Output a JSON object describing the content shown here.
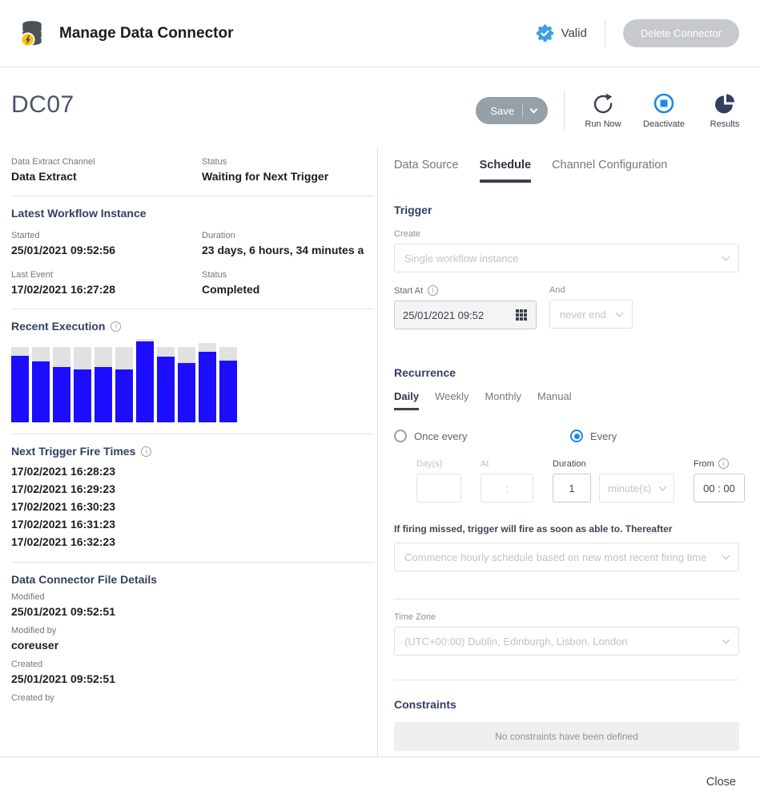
{
  "colors": {
    "accent_blue": "#1e88e5",
    "bar_blue": "#1c0dff",
    "track_gray": "#e1e1e1",
    "navy": "#333e63",
    "badge_blue": "#3d9fe0"
  },
  "icons": {
    "app_icon": "database-with-lightning-bolt",
    "valid_icon": "blue-seal-with-check",
    "run_now_icon": "circular-arrow",
    "deactivate_icon": "stop-square-in-circle",
    "results_icon": "pie-chart",
    "calendar_icon": "calendar-grid",
    "info_icon": "circle-i",
    "chevron_icon": "chevron-down"
  },
  "header": {
    "title": "Manage Data Connector",
    "status_badge": "Valid",
    "delete_button": "Delete Connector"
  },
  "title_row": {
    "name": "DC07",
    "save_button": "Save",
    "actions": [
      {
        "label": "Run Now"
      },
      {
        "label": "Deactivate"
      },
      {
        "label": "Results"
      }
    ]
  },
  "left_panel": {
    "fields_top": {
      "channel_label": "Data Extract Channel",
      "channel_value": "Data Extract",
      "status_label": "Status",
      "status_value": "Waiting for Next Trigger"
    },
    "workflow": {
      "heading": "Latest Workflow Instance",
      "started_label": "Started",
      "started_value": "25/01/2021 09:52:56",
      "duration_label": "Duration",
      "duration_value": "23 days, 6 hours, 34 minutes a",
      "last_event_label": "Last Event",
      "last_event_value": "17/02/2021 16:27:28",
      "status_label": "Status",
      "status_value": "Completed"
    },
    "recent_execution": {
      "heading": "Recent Execution"
    },
    "next_trigger": {
      "heading": "Next Trigger Fire Times",
      "times": [
        "17/02/2021 16:28:23",
        "17/02/2021 16:29:23",
        "17/02/2021 16:30:23",
        "17/02/2021 16:31:23",
        "17/02/2021 16:32:23"
      ]
    },
    "file_details": {
      "heading": "Data Connector File Details",
      "modified_label": "Modified",
      "modified_value": "25/01/2021 09:52:51",
      "modified_by_label": "Modified by",
      "modified_by_value": "coreuser",
      "created_label": "Created",
      "created_value": "25/01/2021 09:52:51",
      "created_by_label": "Created by"
    }
  },
  "chart_data": {
    "type": "bar",
    "title": "Recent Execution",
    "xlabel": "",
    "ylabel": "",
    "ylim": [
      0,
      100
    ],
    "axis_ticks_visible": false,
    "legend": "none",
    "bar_color": "#1c0dff",
    "track_color": "#e1e1e1",
    "series": [
      {
        "name": "total",
        "values": [
          90,
          90,
          90,
          90,
          90,
          90,
          100,
          90,
          90,
          95,
          90
        ]
      },
      {
        "name": "filled",
        "values": [
          80,
          73,
          66,
          63,
          66,
          63,
          97,
          79,
          71,
          85,
          74
        ]
      }
    ]
  },
  "right_panel": {
    "tabs": [
      {
        "label": "Data Source"
      },
      {
        "label": "Schedule"
      },
      {
        "label": "Channel Configuration"
      }
    ],
    "trigger": {
      "heading": "Trigger",
      "create_label": "Create",
      "create_value": "Single workflow instance",
      "start_at_label": "Start At",
      "start_at_value": "25/01/2021 09:52",
      "and_label": "And",
      "and_value": "never end"
    },
    "recurrence": {
      "heading": "Recurrence",
      "tabs": [
        "Daily",
        "Weekly",
        "Monthly",
        "Manual"
      ],
      "radio_once": "Once every",
      "radio_every": "Every",
      "days_label": "Day(s)",
      "at_label": "At",
      "at_value": ":",
      "duration_label": "Duration",
      "duration_value": "1",
      "unit_value": "minute(s)",
      "from_label": "From",
      "from_value": "00 : 00",
      "missed_note": "If firing missed, trigger will fire as soon as able to. Thereafter",
      "missed_value": "Commence hourly schedule based on new most recent firing time"
    },
    "timezone": {
      "label": "Time Zone",
      "value": "(UTC+00:00) Dublin, Edinburgh, Lisbon, London"
    },
    "constraints": {
      "heading": "Constraints",
      "empty_message": "No constraints have been defined"
    }
  },
  "footer": {
    "close_label": "Close"
  }
}
